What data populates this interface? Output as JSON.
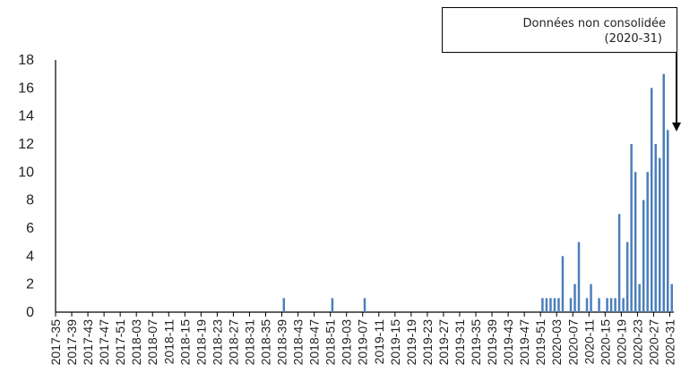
{
  "annotation": {
    "line1": "Données non consolidée",
    "line2": "(2020-31)"
  },
  "colors": {
    "bar": "#4a7ebb",
    "axis": "#000000",
    "text": "#222222"
  },
  "chart_data": {
    "type": "bar",
    "title": "",
    "xlabel": "",
    "ylabel": "",
    "ylim": [
      0,
      18
    ],
    "y_ticks": [
      0,
      2,
      4,
      6,
      8,
      10,
      12,
      14,
      16,
      18
    ],
    "grid": false,
    "x_tick_labels": [
      "2017-35",
      "2017-39",
      "2017-43",
      "2017-47",
      "2017-51",
      "2018-03",
      "2018-07",
      "2018-11",
      "2018-15",
      "2018-19",
      "2018-23",
      "2018-27",
      "2018-31",
      "2018-35",
      "2018-39",
      "2018-43",
      "2018-47",
      "2018-51",
      "2019-03",
      "2019-07",
      "2019-11",
      "2019-15",
      "2019-19",
      "2019-23",
      "2019-27",
      "2019-31",
      "2019-35",
      "2019-39",
      "2019-43",
      "2019-47",
      "2019-51",
      "2020-03",
      "2020-07",
      "2020-11",
      "2020-15",
      "2020-19",
      "2020-23",
      "2020-27",
      "2020-31"
    ],
    "categories": [
      "2018-39",
      "2018-51",
      "2019-07",
      "2019-51",
      "2019-52",
      "2020-01",
      "2020-02",
      "2020-03",
      "2020-04",
      "2020-06",
      "2020-07",
      "2020-08",
      "2020-10",
      "2020-11",
      "2020-13",
      "2020-15",
      "2020-16",
      "2020-17",
      "2020-18",
      "2020-19",
      "2020-20",
      "2020-21",
      "2020-22",
      "2020-23",
      "2020-24",
      "2020-25",
      "2020-26",
      "2020-27",
      "2020-28",
      "2020-29",
      "2020-30",
      "2020-31"
    ],
    "values": [
      1,
      1,
      1,
      1,
      1,
      1,
      1,
      1,
      4,
      1,
      2,
      5,
      1,
      2,
      1,
      1,
      1,
      1,
      7,
      1,
      5,
      12,
      10,
      2,
      8,
      10,
      16,
      12,
      11,
      17,
      13,
      2
    ],
    "annotation_points_to": "2020-31"
  }
}
